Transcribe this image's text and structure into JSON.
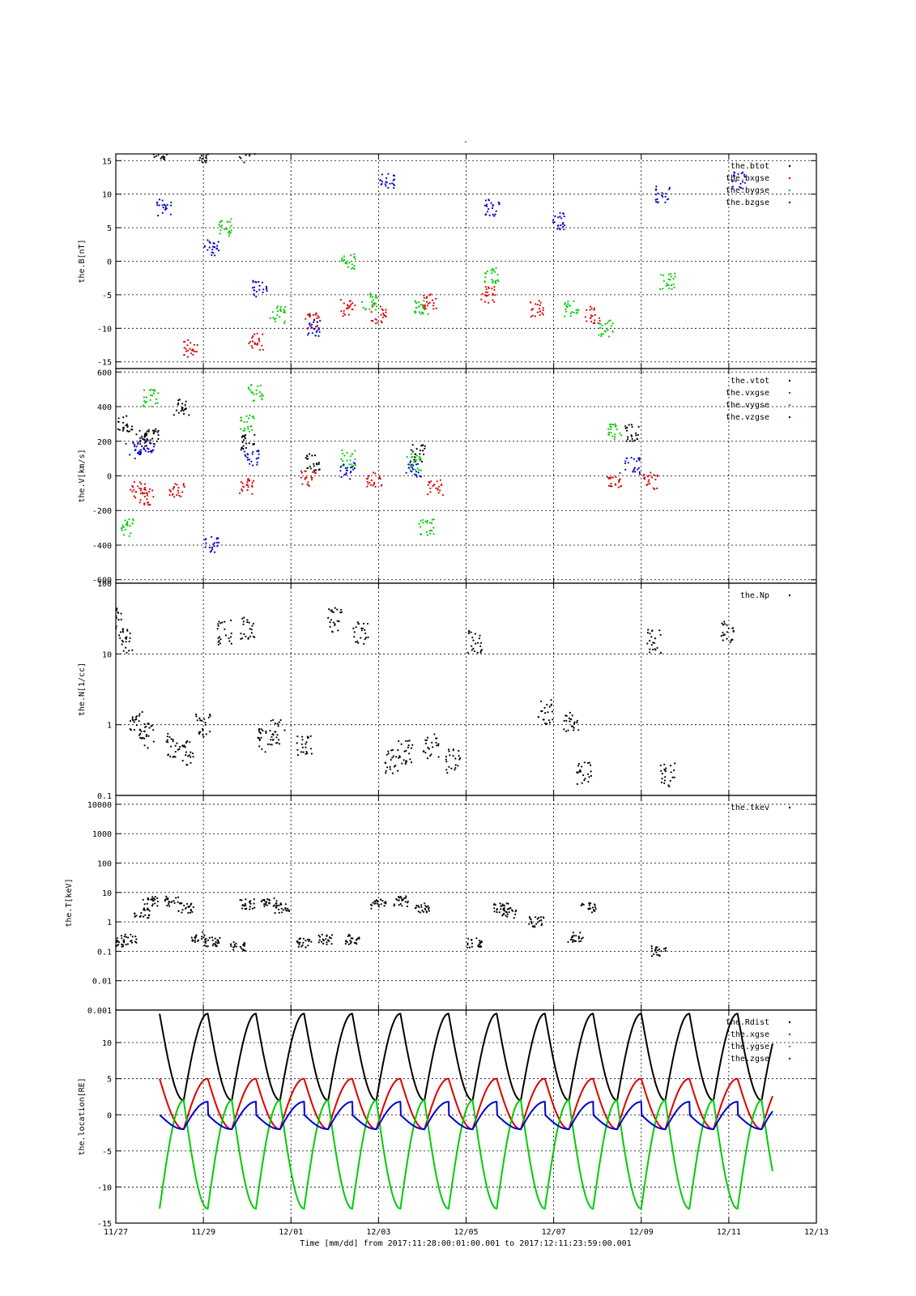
{
  "chart_data": {
    "type": "scatter",
    "title": "-",
    "xlabel": "Time [mm/dd]  from 2017:11:28:00:01:00.001  to  2017:12:11:23:59:00.001",
    "x_ticks": [
      "11/27",
      "11/29",
      "12/01",
      "12/03",
      "12/05",
      "12/07",
      "12/09",
      "12/11",
      "12/13"
    ],
    "x_range_days": [
      0,
      16
    ],
    "colors": {
      "black": "#000000",
      "red": "#dd0000",
      "green": "#00cc00",
      "blue": "#0000cc"
    },
    "panels": [
      {
        "id": "B",
        "ylabel": "the.B[nT]",
        "ylim": [
          -16,
          16
        ],
        "yscale": "linear",
        "yticks": [
          "15",
          "10",
          "5",
          "0",
          "-5",
          "-10",
          "-15"
        ],
        "legend": [
          "the.btot",
          "the.bxgse",
          "the.bygse",
          "the.bzgse"
        ],
        "series": [
          {
            "name": "the.btot",
            "color": "#000000",
            "x": [
              1,
              2,
              3
            ],
            "y": [
              16,
              16,
              16
            ]
          },
          {
            "name": "the.bxgse",
            "color": "#dd0000",
            "x": [
              1.7,
              3.2,
              4.5,
              5.3,
              6.0,
              7.2,
              8.5,
              9.6,
              10.9
            ],
            "y": [
              -13,
              -12,
              -9,
              -7,
              -8,
              -6,
              -5,
              -7,
              -8
            ]
          },
          {
            "name": "the.bygse",
            "color": "#00cc00",
            "x": [
              2.5,
              3.7,
              5.3,
              5.8,
              7.0,
              8.6,
              10.4,
              11.2,
              12.6
            ],
            "y": [
              5,
              -8,
              0,
              -6,
              -7,
              -2,
              -7,
              -10,
              -3
            ]
          },
          {
            "name": "the.bzgse",
            "color": "#0000cc",
            "x": [
              1.1,
              2.2,
              3.3,
              4.5,
              6.2,
              8.6,
              10.1,
              12.5,
              14.2
            ],
            "y": [
              8,
              2,
              -4,
              -10,
              12,
              8,
              6,
              10,
              12
            ]
          }
        ]
      },
      {
        "id": "V",
        "ylabel": "the.V[km/s]",
        "ylim": [
          -620,
          620
        ],
        "yscale": "linear",
        "yticks": [
          "600",
          "400",
          "200",
          "0",
          "-200",
          "-400",
          "-600"
        ],
        "legend": [
          "the.vtot",
          "the.vxgse",
          "the.vygse",
          "the.vzgse"
        ],
        "series": [
          {
            "name": "the.vtot",
            "color": "#000000",
            "x": [
              0.2,
              0.6,
              0.8,
              1.5,
              3.0,
              4.5,
              6.9,
              11.8
            ],
            "y": [
              300,
              220,
              230,
              400,
              200,
              80,
              130,
              250
            ]
          },
          {
            "name": "the.vxgse",
            "color": "#dd0000",
            "x": [
              0.5,
              0.7,
              1.4,
              3.0,
              4.4,
              5.9,
              7.3,
              11.4,
              12.2
            ],
            "y": [
              -80,
              -120,
              -90,
              -60,
              -10,
              -30,
              -70,
              -20,
              -30
            ]
          },
          {
            "name": "the.vygse",
            "color": "#00cc00",
            "x": [
              0.3,
              0.8,
              3.0,
              3.2,
              5.3,
              6.8,
              7.1,
              11.4
            ],
            "y": [
              -300,
              450,
              300,
              480,
              100,
              80,
              -300,
              250
            ]
          },
          {
            "name": "the.vzgse",
            "color": "#0000cc",
            "x": [
              0.4,
              0.7,
              2.2,
              3.1,
              5.3,
              6.8,
              11.8
            ],
            "y": [
              150,
              180,
              -400,
              100,
              30,
              40,
              60
            ]
          }
        ]
      },
      {
        "id": "N",
        "ylabel": "the.N[1/cc]",
        "ylim": [
          0.1,
          100
        ],
        "yscale": "log",
        "yticks": [
          "100",
          "10",
          "1",
          "0.1"
        ],
        "legend": [
          "the.Np"
        ],
        "series": [
          {
            "name": "the.Np",
            "color": "#000000",
            "x": [
              0.0,
              0.2,
              0.5,
              0.7,
              1.3,
              1.6,
              2.0,
              2.5,
              3.0,
              3.4,
              3.7,
              4.3,
              5.0,
              5.6,
              6.3,
              6.6,
              7.2,
              7.7,
              8.2,
              9.8,
              10.4,
              10.7,
              12.3,
              12.6,
              14.0
            ],
            "y": [
              30,
              15,
              1.2,
              0.7,
              0.5,
              0.4,
              1,
              20,
              22,
              0.6,
              0.8,
              0.5,
              30,
              20,
              0.3,
              0.4,
              0.5,
              0.3,
              15,
              1.5,
              1.0,
              0.2,
              15,
              0.2,
              20
            ]
          }
        ]
      },
      {
        "id": "T",
        "ylabel": "the.T[keV]",
        "ylim": [
          0.001,
          20000
        ],
        "yscale": "log",
        "yticks": [
          "10000",
          "1000",
          "100",
          "10",
          "1",
          "0.1",
          "0.01",
          "0.001"
        ],
        "legend": [
          "the.tkev"
        ],
        "series": [
          {
            "name": "the.tkev",
            "color": "#000000",
            "x": [
              0.0,
              0.3,
              0.6,
              0.8,
              1.3,
              1.6,
              1.9,
              2.2,
              2.8,
              3.0,
              3.5,
              3.8,
              4.3,
              4.8,
              5.4,
              6.0,
              6.5,
              7.0,
              8.2,
              8.8,
              9.0,
              9.6,
              10.5,
              10.8,
              12.4
            ],
            "y": [
              0.2,
              0.25,
              2,
              5,
              5,
              3,
              0.3,
              0.2,
              0.15,
              4,
              5,
              3,
              0.2,
              0.25,
              0.25,
              4,
              5,
              3,
              0.2,
              3,
              2,
              1,
              0.3,
              3,
              0.1
            ]
          }
        ]
      },
      {
        "id": "Loc",
        "ylabel": "the.location[RE]",
        "ylim": [
          -15,
          14.5
        ],
        "yscale": "linear",
        "yticks": [
          "10",
          "5",
          "0",
          "-5",
          "-10",
          "-15"
        ],
        "legend": [
          "the.Rdist",
          "the.xgse",
          "the.ygse",
          "the.zgse"
        ],
        "period_days": 1.1,
        "series": [
          {
            "name": "the.Rdist",
            "color": "#000000",
            "x": [
              0,
              0.55,
              1.1
            ],
            "y": [
              14,
              2,
              14
            ]
          },
          {
            "name": "the.xgse",
            "color": "#dd0000",
            "x": [
              0,
              0.55,
              1.1
            ],
            "y": [
              5,
              -2,
              5
            ]
          },
          {
            "name": "the.ygse",
            "color": "#00cc00",
            "x": [
              0,
              0.55,
              1.1
            ],
            "y": [
              -13,
              2,
              -13
            ]
          },
          {
            "name": "the.zgse",
            "color": "#0000cc",
            "x": [
              0,
              0.55,
              1.1
            ],
            "y": [
              0,
              -2,
              1.8
            ]
          }
        ]
      }
    ]
  }
}
